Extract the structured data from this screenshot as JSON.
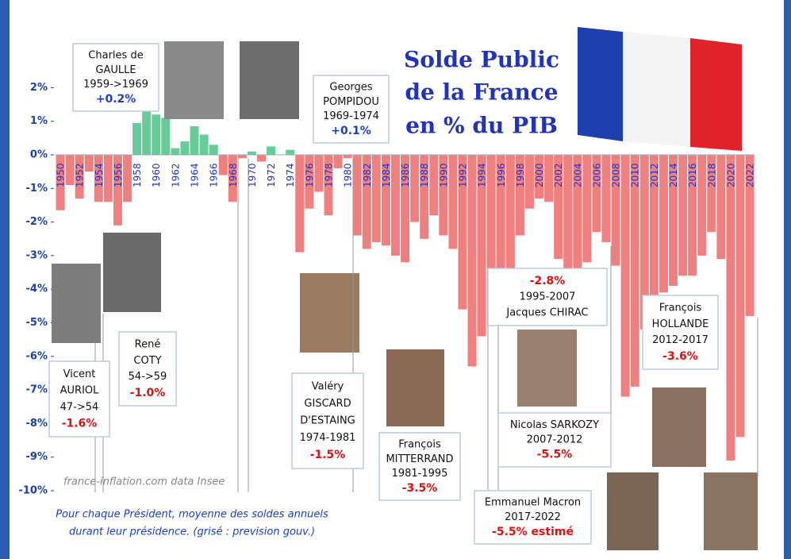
{
  "chart_data": {
    "type": "bar",
    "title_lines": [
      "Solde Public",
      "de la France",
      "en % du PIB"
    ],
    "source": "france-inflation.com  data Insee",
    "note_lines": [
      "Pour chaque Président, moyenne des soldes annuels",
      "durant leur présidence. (grisé : prevision gouv.)"
    ],
    "categories": [
      "1950",
      null,
      "1952",
      null,
      "1954",
      null,
      "1956",
      null,
      "1958",
      null,
      "1960",
      null,
      "1962",
      null,
      "1964",
      null,
      "1966",
      null,
      "1968",
      null,
      "1970",
      null,
      "1972",
      null,
      "1974",
      null,
      "1976",
      null,
      "1978",
      null,
      "1980",
      null,
      "1982",
      null,
      "1984",
      null,
      "1986",
      null,
      "1988",
      null,
      "1990",
      null,
      "1992",
      null,
      "1994",
      null,
      "1996",
      null,
      "1998",
      null,
      "2000",
      null,
      "2002",
      null,
      "2004",
      null,
      "2006",
      null,
      "2008",
      null,
      "2010",
      null,
      "2012",
      null,
      "2014",
      null,
      "2016",
      null,
      "2018",
      null,
      "2020",
      null,
      "2022"
    ],
    "values": [
      -1.65,
      -0.9,
      -1.3,
      -0.5,
      -1.4,
      -1.4,
      -2.1,
      -1.4,
      0.95,
      1.6,
      1.2,
      1.1,
      0.2,
      0.4,
      0.85,
      0.6,
      0.3,
      -0.6,
      -1.4,
      -0.1,
      0.1,
      -0.2,
      0.25,
      0.0,
      0.15,
      -2.9,
      -1.6,
      -1.1,
      -1.8,
      -0.4,
      -0.1,
      -2.4,
      -2.8,
      -2.6,
      -2.7,
      -3.0,
      -3.2,
      -2.0,
      -2.5,
      -1.8,
      -2.4,
      -2.8,
      -4.6,
      -6.3,
      -5.4,
      -5.1,
      -3.9,
      -3.6,
      -2.4,
      -1.6,
      -1.3,
      -1.4,
      -3.1,
      -3.9,
      -3.5,
      -3.2,
      -2.3,
      -2.6,
      -3.3,
      -7.2,
      -6.9,
      -5.2,
      -5.0,
      -4.1,
      -3.9,
      -3.6,
      -3.6,
      -3.0,
      -2.3,
      -3.1,
      -9.1,
      -8.4,
      -4.8
    ],
    "positive_color": "#66cc99",
    "negative_color": "#f08080",
    "ylim": [
      -10,
      2.5
    ],
    "yticks": [
      {
        "value": 2,
        "label": "2%"
      },
      {
        "value": 1,
        "label": "1%"
      },
      {
        "value": 0,
        "label": "0%"
      },
      {
        "value": -1,
        "label": "-1%"
      },
      {
        "value": -2,
        "label": "-2%"
      },
      {
        "value": -3,
        "label": "-3%"
      },
      {
        "value": -4,
        "label": "-4%"
      },
      {
        "value": -5,
        "label": "-5%"
      },
      {
        "value": -6,
        "label": "-6%"
      },
      {
        "value": -7,
        "label": "-7%"
      },
      {
        "value": -8,
        "label": "-8%"
      },
      {
        "value": -9,
        "label": "-9%"
      },
      {
        "value": -10,
        "label": "-10%"
      }
    ],
    "annotations": [
      {
        "lines": [
          "Charles de",
          "GAULLE",
          "1959->1969"
        ],
        "value": "+0.2%"
      },
      {
        "lines": [
          "Georges",
          "POMPIDOU",
          "1969-1974"
        ],
        "value": "+0.1%"
      },
      {
        "lines": [
          "Vicent",
          "AURIOL",
          "47->54"
        ],
        "value": "-1.6%"
      },
      {
        "lines": [
          "René",
          "COTY",
          "54->59"
        ],
        "value": "-1.0%"
      },
      {
        "lines": [
          "Valéry",
          "GISCARD",
          "D'ESTAING",
          "1974-1981"
        ],
        "value": "-1.5%"
      },
      {
        "lines": [
          "François",
          "MITTERRAND",
          "1981-1995"
        ],
        "value": "-3.5%"
      },
      {
        "lines": [
          "1995-2007",
          "Jacques CHIRAC"
        ],
        "value": "-2.8%"
      },
      {
        "lines": [
          "Nicolas SARKOZY",
          "2007-2012"
        ],
        "value": "-5.5%"
      },
      {
        "lines": [
          "Emmanuel Macron",
          "2017-2022"
        ],
        "value": "-5.5% estimé"
      },
      {
        "lines": [
          "François",
          "HOLLANDE",
          "2012-2017"
        ],
        "value": "-3.6%"
      }
    ]
  }
}
